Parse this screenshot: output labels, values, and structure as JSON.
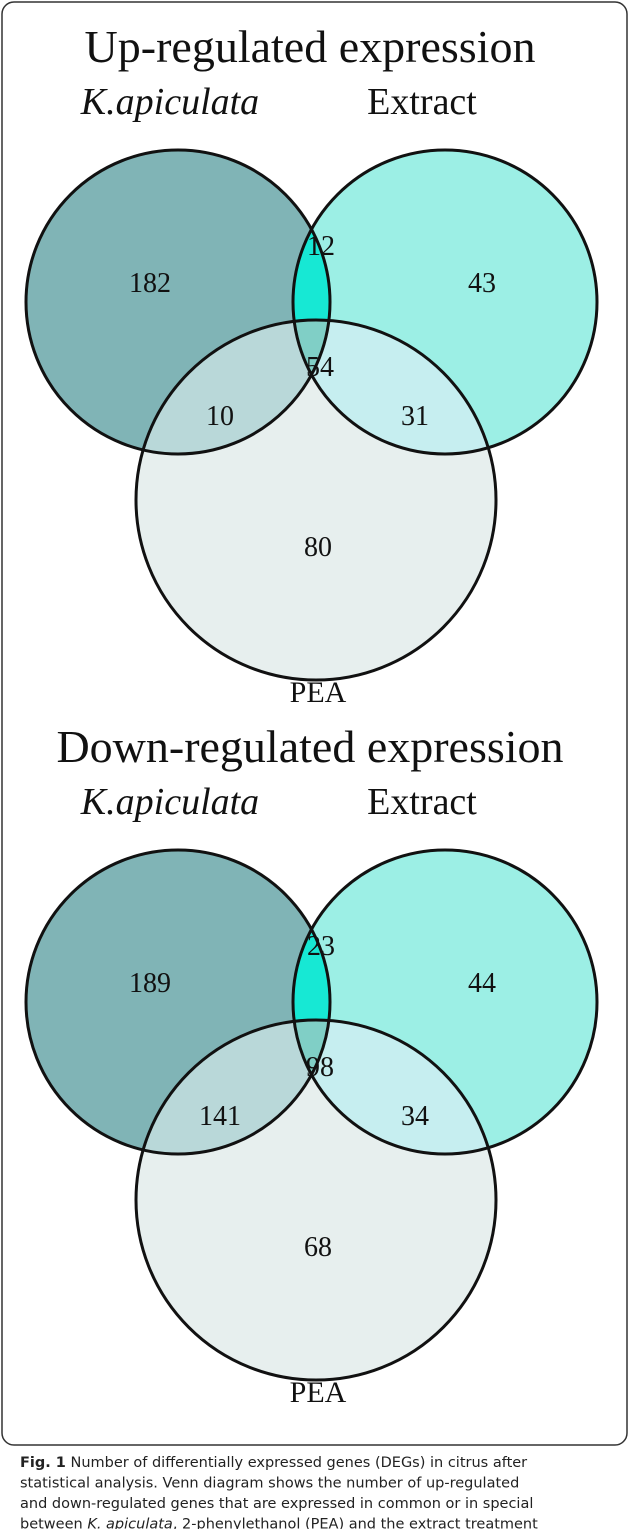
{
  "diagrams": [
    {
      "title": "Up-regulated expression",
      "set_a": "K.apiculata",
      "set_b": "Extract",
      "set_c": "PEA",
      "regions": {
        "a": "182",
        "ab": "12",
        "b": "43",
        "abc": "54",
        "ac": "10",
        "bc": "31",
        "c": "80"
      }
    },
    {
      "title": "Down-regulated expression",
      "set_a": "K.apiculata",
      "set_b": "Extract",
      "set_c": "PEA",
      "regions": {
        "a": "189",
        "ab": "23",
        "b": "44",
        "abc": "98",
        "ac": "141",
        "bc": "34",
        "c": "68"
      }
    }
  ],
  "caption": {
    "label": "Fig. 1",
    "lines": [
      [
        " Number of differentially expressed genes (DEGs) in citrus after"
      ],
      [
        "statistical analysis. Venn diagram shows the number of up-regulated"
      ],
      [
        "and down-regulated genes that are expressed in common or in special"
      ],
      [
        "between ",
        "K. apiculata",
        ", 2-phenylethanol (PEA) and the extract treatment"
      ]
    ]
  }
}
